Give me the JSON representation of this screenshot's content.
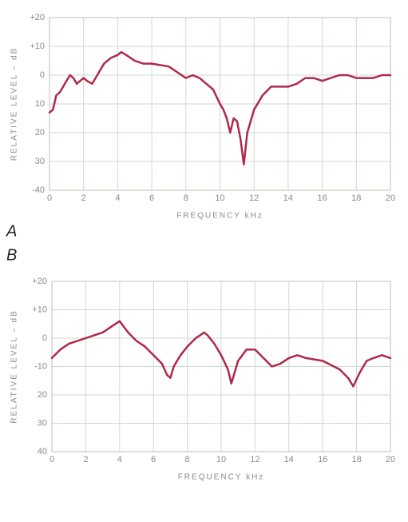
{
  "chart_data": [
    {
      "type": "line",
      "label": "A",
      "xlabel": "FREQUENCY   kHz",
      "ylabel": "RELATIVE LEVEL – dB",
      "color": "#b0284a",
      "grid": true,
      "xlim": [
        0,
        20
      ],
      "ylim": [
        -40,
        20
      ],
      "xticks": [
        0,
        2,
        4,
        6,
        8,
        10,
        12,
        14,
        16,
        18,
        20
      ],
      "yticks": [
        {
          "value": 20,
          "label": "+20"
        },
        {
          "value": 10,
          "label": "+10"
        },
        0,
        {
          "value": -10,
          "label": "10"
        },
        {
          "value": -20,
          "label": "20"
        },
        {
          "value": -30,
          "label": "30"
        },
        {
          "value": -40,
          "label": "-40"
        }
      ],
      "x": [
        0,
        0.2,
        0.4,
        0.6,
        0.8,
        1.0,
        1.2,
        1.4,
        1.6,
        1.8,
        2.0,
        2.2,
        2.5,
        2.8,
        3.2,
        3.6,
        4.0,
        4.2,
        4.5,
        5.0,
        5.5,
        6.0,
        7.0,
        7.5,
        8.0,
        8.4,
        8.8,
        9.2,
        9.6,
        10.0,
        10.2,
        10.4,
        10.6,
        10.8,
        11.0,
        11.2,
        11.4,
        11.6,
        12.0,
        12.5,
        13.0,
        14.0,
        14.5,
        15.0,
        15.5,
        16.0,
        16.5,
        17.0,
        17.5,
        18.0,
        19.0,
        19.5,
        20.0
      ],
      "values": [
        -13,
        -12,
        -7,
        -6,
        -4,
        -2,
        0,
        -1,
        -3,
        -2,
        -1,
        -2,
        -3,
        0,
        4,
        6,
        7,
        8,
        7,
        5,
        4,
        4,
        3,
        1,
        -1,
        0,
        -1,
        -3,
        -5,
        -10,
        -12,
        -15,
        -20,
        -15,
        -16,
        -22,
        -31,
        -20,
        -12,
        -7,
        -4,
        -4,
        -3,
        -1,
        -1,
        -2,
        -1,
        0,
        0,
        -1,
        -1,
        0,
        0
      ]
    },
    {
      "type": "line",
      "label": "B",
      "xlabel": "FREQUENCY   kHz",
      "ylabel": "RELATIVE LEVEL – dB",
      "color": "#b0284a",
      "grid": true,
      "xlim": [
        0,
        20
      ],
      "ylim": [
        -40,
        20
      ],
      "xticks": [
        0,
        2,
        4,
        6,
        8,
        10,
        12,
        14,
        16,
        18,
        20
      ],
      "yticks": [
        {
          "value": 20,
          "label": "+20"
        },
        {
          "value": 10,
          "label": "+10"
        },
        0,
        {
          "value": -10,
          "label": "-10"
        },
        {
          "value": -20,
          "label": "20"
        },
        {
          "value": -30,
          "label": "30"
        },
        {
          "value": -40,
          "label": "40"
        }
      ],
      "x": [
        0,
        0.5,
        1.0,
        1.5,
        2.0,
        2.5,
        3.0,
        3.5,
        4.0,
        4.5,
        5.0,
        5.5,
        6.0,
        6.5,
        6.8,
        7.0,
        7.2,
        7.6,
        8.0,
        8.5,
        9.0,
        9.2,
        9.6,
        10.0,
        10.4,
        10.6,
        11.0,
        11.5,
        12.0,
        12.5,
        13.0,
        13.5,
        14.0,
        14.5,
        15.0,
        16.0,
        17.0,
        17.5,
        17.8,
        18.2,
        18.6,
        19.0,
        19.5,
        20.0
      ],
      "values": [
        -7,
        -4,
        -2,
        -1,
        0,
        1,
        2,
        4,
        6,
        2,
        -1,
        -3,
        -6,
        -9,
        -13,
        -14,
        -10,
        -6,
        -3,
        0,
        2,
        1,
        -2,
        -6,
        -11,
        -16,
        -8,
        -4,
        -4,
        -7,
        -10,
        -9,
        -7,
        -6,
        -7,
        -8,
        -11,
        -14,
        -17,
        -12,
        -8,
        -7,
        -6,
        -7
      ]
    }
  ]
}
